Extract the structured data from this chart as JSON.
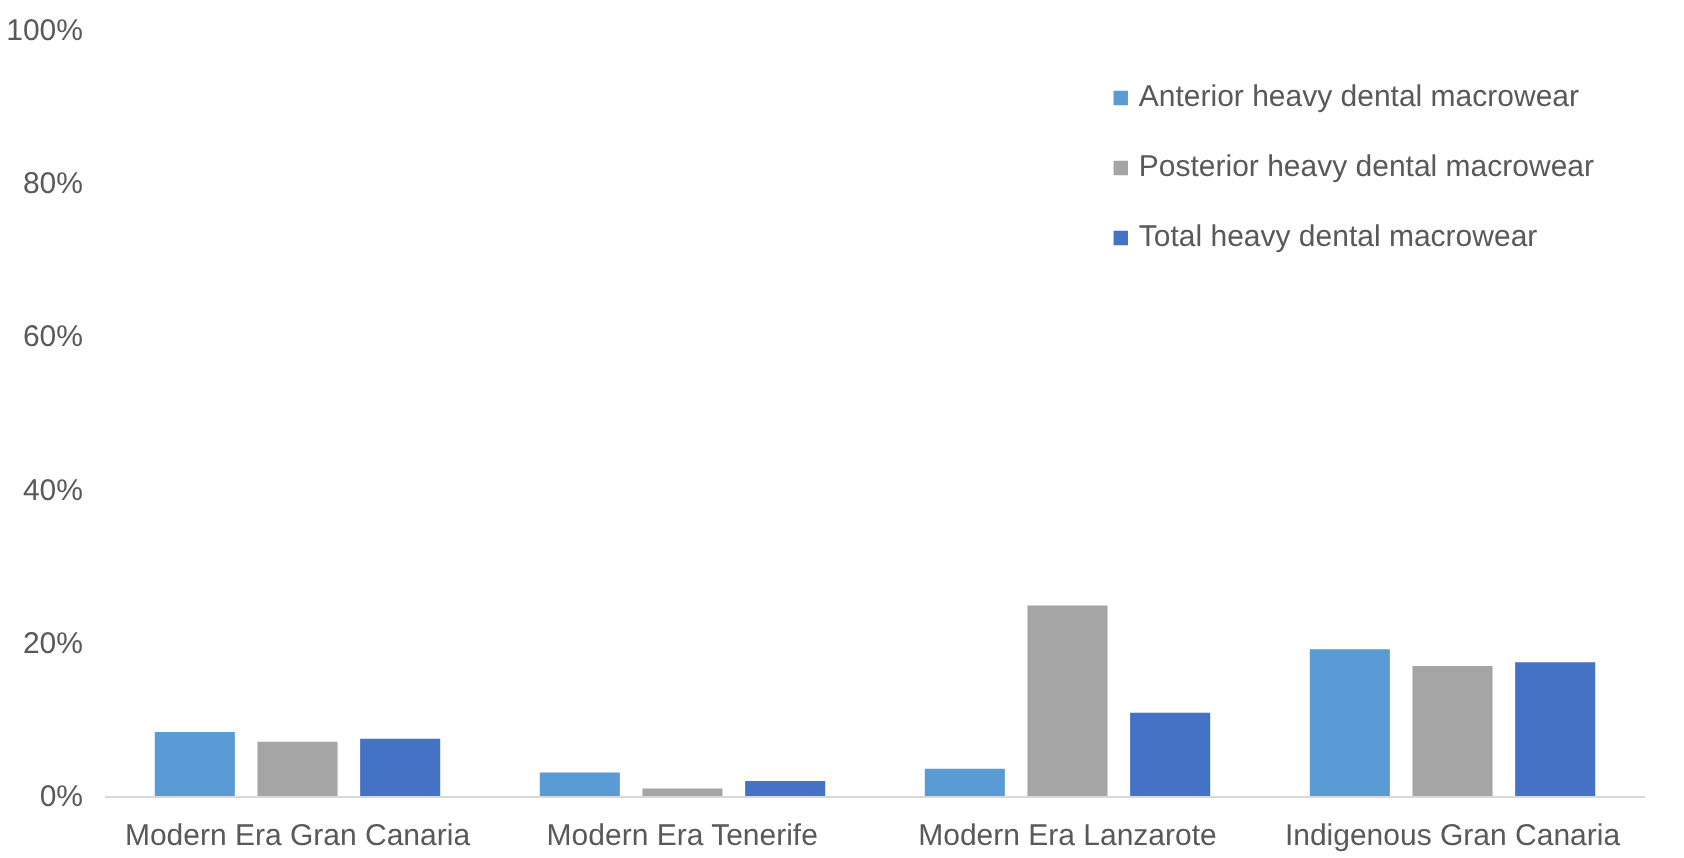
{
  "chart_data": {
    "type": "bar",
    "categories": [
      "Modern Era Gran Canaria",
      "Modern Era Tenerife",
      "Modern Era Lanzarote",
      "Indigenous Gran Canaria"
    ],
    "series": [
      {
        "name": "Anterior heavy dental macrowear",
        "color": "#5b9bd5",
        "values": [
          8.5,
          3.2,
          3.7,
          19.3
        ]
      },
      {
        "name": "Posterior heavy dental macrowear",
        "color": "#a5a5a5",
        "values": [
          7.2,
          1.1,
          25,
          17.1
        ]
      },
      {
        "name": "Total heavy dental macrowear",
        "color": "#4472c4",
        "values": [
          7.6,
          2.1,
          11,
          17.6
        ]
      }
    ],
    "ylim": [
      0,
      100
    ],
    "yticks": [
      {
        "value": 0,
        "label": "0%"
      },
      {
        "value": 20,
        "label": "20%"
      },
      {
        "value": 40,
        "label": "40%"
      },
      {
        "value": 60,
        "label": "60%"
      },
      {
        "value": 80,
        "label": "80%"
      },
      {
        "value": 100,
        "label": "100%"
      }
    ],
    "grid": false,
    "legend": "top right"
  }
}
